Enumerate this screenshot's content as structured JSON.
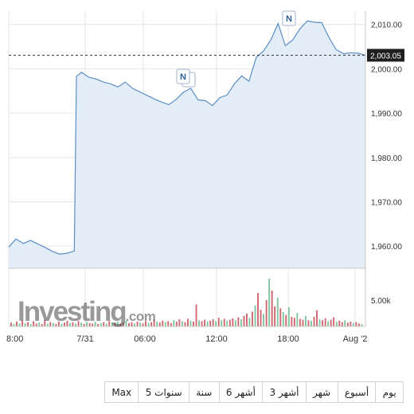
{
  "chart_data": {
    "type": "area",
    "price": {
      "y_ticks": [
        "2,010.00",
        "2,000.00",
        "1,990.00",
        "1,980.00",
        "1,970.00",
        "1,960.00"
      ],
      "ylim": [
        1955,
        2013
      ],
      "current_value": "2,003.05",
      "points": [
        [
          0,
          1959.8
        ],
        [
          1,
          1961.6
        ],
        [
          2,
          1960.6
        ],
        [
          3,
          1961.3
        ],
        [
          4,
          1960.5
        ],
        [
          5,
          1959.7
        ],
        [
          6,
          1958.8
        ],
        [
          7,
          1958.2
        ],
        [
          8,
          1958.4
        ],
        [
          9,
          1958.9
        ],
        [
          9.3,
          1998.3
        ],
        [
          10,
          1999.2
        ],
        [
          11,
          1998.1
        ],
        [
          12,
          1997.7
        ],
        [
          13,
          1997.0
        ],
        [
          14,
          1996.6
        ],
        [
          15,
          1995.9
        ],
        [
          16,
          1997.0
        ],
        [
          17,
          1995.6
        ],
        [
          18,
          1994.8
        ],
        [
          19,
          1994.0
        ],
        [
          20,
          1993.2
        ],
        [
          21,
          1992.5
        ],
        [
          22,
          1991.9
        ],
        [
          23,
          1993.1
        ],
        [
          24,
          1994.7
        ],
        [
          25,
          1995.6
        ],
        [
          26,
          1993.0
        ],
        [
          27,
          1992.8
        ],
        [
          28,
          1991.7
        ],
        [
          29,
          1993.5
        ],
        [
          30,
          1994.1
        ],
        [
          31,
          1996.6
        ],
        [
          32,
          1998.4
        ],
        [
          33,
          1997.2
        ],
        [
          34,
          2002.6
        ],
        [
          35,
          2004.0
        ],
        [
          36,
          2006.5
        ],
        [
          37,
          2010.2
        ],
        [
          38,
          2005.2
        ],
        [
          39,
          2006.5
        ],
        [
          40,
          2009.0
        ],
        [
          41,
          2010.8
        ],
        [
          42,
          2010.5
        ],
        [
          43,
          2010.4
        ],
        [
          44,
          2007.0
        ],
        [
          45,
          2004.3
        ],
        [
          46,
          2003.4
        ],
        [
          47,
          2003.6
        ],
        [
          48,
          2003.5
        ],
        [
          49,
          2003.05
        ]
      ],
      "news_markers": [
        "N",
        "N"
      ]
    },
    "volume": {
      "y_tick": "5.00k",
      "bars": [
        {
          "v": 0.08,
          "up": false
        },
        {
          "v": 0.05,
          "up": true
        },
        {
          "v": 0.1,
          "up": false
        },
        {
          "v": 0.06,
          "up": true
        },
        {
          "v": 0.12,
          "up": false
        },
        {
          "v": 0.07,
          "up": true
        },
        {
          "v": 0.09,
          "up": false
        },
        {
          "v": 0.05,
          "up": true
        },
        {
          "v": 0.11,
          "up": false
        },
        {
          "v": 0.06,
          "up": false
        },
        {
          "v": 0.08,
          "up": true
        },
        {
          "v": 0.05,
          "up": false
        },
        {
          "v": 0.14,
          "up": false
        },
        {
          "v": 0.06,
          "up": true
        },
        {
          "v": 0.09,
          "up": false
        },
        {
          "v": 0.07,
          "up": true
        },
        {
          "v": 0.05,
          "up": false
        },
        {
          "v": 0.1,
          "up": false
        },
        {
          "v": 0.06,
          "up": true
        },
        {
          "v": 0.08,
          "up": false
        },
        {
          "v": 0.12,
          "up": false
        },
        {
          "v": 0.07,
          "up": true
        },
        {
          "v": 0.09,
          "up": false
        },
        {
          "v": 0.06,
          "up": true
        },
        {
          "v": 0.11,
          "up": false
        },
        {
          "v": 0.08,
          "up": true
        },
        {
          "v": 0.05,
          "up": false
        },
        {
          "v": 0.09,
          "up": true
        },
        {
          "v": 0.07,
          "up": false
        },
        {
          "v": 0.06,
          "up": false
        },
        {
          "v": 0.1,
          "up": true
        },
        {
          "v": 0.05,
          "up": false
        },
        {
          "v": 0.07,
          "up": true
        },
        {
          "v": 0.09,
          "up": false
        },
        {
          "v": 0.06,
          "up": true
        },
        {
          "v": 0.11,
          "up": false
        },
        {
          "v": 0.08,
          "up": true
        },
        {
          "v": 0.07,
          "up": false
        },
        {
          "v": 0.1,
          "up": true
        },
        {
          "v": 0.06,
          "up": false
        },
        {
          "v": 0.08,
          "up": false
        },
        {
          "v": 0.12,
          "up": true
        },
        {
          "v": 0.07,
          "up": false
        },
        {
          "v": 0.09,
          "up": false
        },
        {
          "v": 0.06,
          "up": true
        },
        {
          "v": 0.1,
          "up": false
        },
        {
          "v": 0.08,
          "up": true
        },
        {
          "v": 0.06,
          "up": false
        },
        {
          "v": 0.11,
          "up": false
        },
        {
          "v": 0.07,
          "up": true
        },
        {
          "v": 0.09,
          "up": false
        },
        {
          "v": 0.14,
          "up": false
        },
        {
          "v": 0.1,
          "up": true
        },
        {
          "v": 0.08,
          "up": false
        },
        {
          "v": 0.12,
          "up": false
        },
        {
          "v": 0.09,
          "up": true
        },
        {
          "v": 0.11,
          "up": false
        },
        {
          "v": 0.07,
          "up": false
        },
        {
          "v": 0.13,
          "up": true
        },
        {
          "v": 0.1,
          "up": false
        },
        {
          "v": 0.15,
          "up": false
        },
        {
          "v": 0.11,
          "up": true
        },
        {
          "v": 0.09,
          "up": false
        },
        {
          "v": 0.16,
          "up": false
        },
        {
          "v": 0.12,
          "up": true
        },
        {
          "v": 0.1,
          "up": false
        },
        {
          "v": 0.46,
          "up": false
        },
        {
          "v": 0.13,
          "up": true
        },
        {
          "v": 0.11,
          "up": false
        },
        {
          "v": 0.14,
          "up": false
        },
        {
          "v": 0.1,
          "up": true
        },
        {
          "v": 0.12,
          "up": false
        },
        {
          "v": 0.15,
          "up": false
        },
        {
          "v": 0.11,
          "up": true
        },
        {
          "v": 0.18,
          "up": false
        },
        {
          "v": 0.13,
          "up": true
        },
        {
          "v": 0.16,
          "up": false
        },
        {
          "v": 0.12,
          "up": true
        },
        {
          "v": 0.14,
          "up": false
        },
        {
          "v": 0.17,
          "up": false
        },
        {
          "v": 0.13,
          "up": true
        },
        {
          "v": 0.19,
          "up": false
        },
        {
          "v": 0.15,
          "up": true
        },
        {
          "v": 0.22,
          "up": false
        },
        {
          "v": 0.27,
          "up": false
        },
        {
          "v": 0.18,
          "up": true
        },
        {
          "v": 0.31,
          "up": false
        },
        {
          "v": 0.44,
          "up": true
        },
        {
          "v": 0.7,
          "up": false
        },
        {
          "v": 0.35,
          "up": false
        },
        {
          "v": 0.26,
          "up": true
        },
        {
          "v": 0.55,
          "up": false
        },
        {
          "v": 1.0,
          "up": true
        },
        {
          "v": 0.75,
          "up": false
        },
        {
          "v": 0.42,
          "up": false
        },
        {
          "v": 0.6,
          "up": true
        },
        {
          "v": 0.38,
          "up": false
        },
        {
          "v": 0.3,
          "up": true
        },
        {
          "v": 0.24,
          "up": false
        },
        {
          "v": 0.4,
          "up": true
        },
        {
          "v": 0.2,
          "up": false
        },
        {
          "v": 0.18,
          "up": false
        },
        {
          "v": 0.28,
          "up": true
        },
        {
          "v": 0.16,
          "up": false
        },
        {
          "v": 0.14,
          "up": false
        },
        {
          "v": 0.22,
          "up": true
        },
        {
          "v": 0.13,
          "up": false
        },
        {
          "v": 0.12,
          "up": true
        },
        {
          "v": 0.2,
          "up": false
        },
        {
          "v": 0.34,
          "up": false
        },
        {
          "v": 0.15,
          "up": true
        },
        {
          "v": 0.13,
          "up": false
        },
        {
          "v": 0.17,
          "up": false
        },
        {
          "v": 0.11,
          "up": true
        },
        {
          "v": 0.14,
          "up": false
        },
        {
          "v": 0.19,
          "up": false
        },
        {
          "v": 0.1,
          "up": true
        },
        {
          "v": 0.12,
          "up": false
        },
        {
          "v": 0.09,
          "up": false
        },
        {
          "v": 0.13,
          "up": true
        },
        {
          "v": 0.08,
          "up": false
        },
        {
          "v": 0.1,
          "up": false
        },
        {
          "v": 0.07,
          "up": true
        },
        {
          "v": 0.09,
          "up": false
        },
        {
          "v": 0.06,
          "up": false
        },
        {
          "v": 0.05,
          "up": true
        }
      ]
    },
    "x_ticks": [
      "8:00",
      "7/31",
      "06:00",
      "12:00",
      "18:00",
      "Aug '2"
    ],
    "colors": {
      "line": "#5b8fc7",
      "area": "#e3edf7",
      "volume_up": "#7fc59f",
      "volume_down": "#cf6670",
      "current_label_bg": "#1f1f1f",
      "current_label_fg": "#ffffff",
      "grid": "#e6e6e6"
    }
  },
  "watermark": {
    "brand": "Investing",
    "suffix": ".com"
  },
  "range_buttons": [
    "يوم",
    "أسبوع",
    "شهر",
    "3 أشهر",
    "6 أشهر",
    "سنة",
    "5 سنوات",
    "Max"
  ]
}
